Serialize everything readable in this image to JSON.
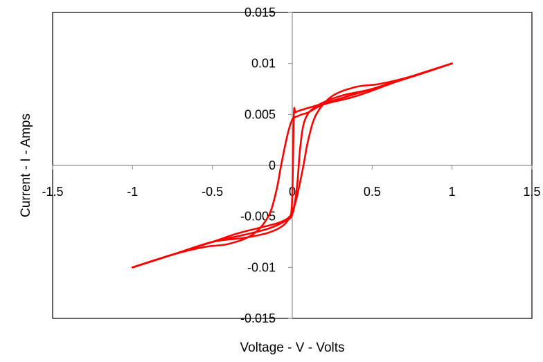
{
  "chart_data": {
    "type": "line",
    "title": "",
    "xlabel": "Voltage - V - Volts",
    "ylabel": "Current - I - Amps",
    "xlim": [
      -1.5,
      1.5
    ],
    "ylim": [
      -0.015,
      0.015
    ],
    "x_ticks": [
      "-1.5",
      "-1",
      "-0.5",
      "0",
      "0.5",
      "1",
      "1.5"
    ],
    "y_ticks": [
      "-0.015",
      "-0.01",
      "-0.005",
      "0",
      "0.005",
      "0.01",
      "0.015"
    ],
    "x_tick_values": [
      -1.5,
      -1,
      -0.5,
      0,
      0.5,
      1,
      1.5
    ],
    "y_tick_values": [
      -0.015,
      -0.01,
      -0.005,
      0,
      0.005,
      0.01,
      0.015
    ],
    "grid": false,
    "legend": "none",
    "line_color": "#FF0000",
    "series": [
      {
        "x": [
          -1.0,
          -0.75,
          -0.5,
          -0.35,
          -0.2,
          -0.1,
          -0.05,
          -0.02,
          -0.01,
          0.0,
          0.01,
          0.02,
          0.05,
          0.2,
          0.5,
          0.75,
          1.0
        ],
        "y": [
          -0.01,
          -0.00875,
          -0.0075,
          -0.0067,
          -0.0061,
          -0.0057,
          -0.0054,
          -0.0051,
          -0.005,
          -0.003,
          0.005,
          0.0052,
          0.0054,
          0.0061,
          0.0075,
          0.00875,
          0.01
        ]
      },
      {
        "x": [
          -1.0,
          -0.75,
          -0.5,
          -0.3,
          -0.15,
          -0.05,
          0.0,
          0.03,
          0.05,
          0.08,
          0.15,
          0.3,
          0.5,
          0.75,
          1.0
        ],
        "y": [
          -0.01,
          -0.00875,
          -0.0075,
          -0.0068,
          -0.0062,
          -0.0055,
          -0.0048,
          -0.002,
          0.0018,
          0.0045,
          0.0058,
          0.0068,
          0.0075,
          0.00875,
          0.01
        ]
      },
      {
        "x": [
          -1.0,
          -0.75,
          -0.5,
          -0.3,
          -0.15,
          -0.05,
          0.0,
          0.03,
          0.07,
          0.1,
          0.15,
          0.25,
          0.4,
          0.55,
          0.75,
          1.0
        ],
        "y": [
          -0.01,
          -0.00875,
          -0.0075,
          -0.0071,
          -0.0066,
          -0.0058,
          -0.0045,
          -0.003,
          0.0,
          0.0025,
          0.005,
          0.0068,
          0.0077,
          0.008,
          0.00875,
          0.01
        ]
      },
      {
        "x": [
          -1.0,
          -0.75,
          -0.55,
          -0.4,
          -0.25,
          -0.15,
          -0.1,
          -0.07,
          -0.03,
          0.0,
          0.03,
          0.06,
          0.1,
          0.2,
          0.4,
          0.65,
          0.8,
          1.0
        ],
        "y": [
          -0.01,
          -0.00875,
          -0.008,
          -0.0077,
          -0.0068,
          -0.005,
          -0.0025,
          0.0,
          0.003,
          0.0045,
          0.0048,
          0.005,
          0.0052,
          0.006,
          0.0068,
          0.0082,
          0.00895,
          0.01
        ]
      }
    ]
  }
}
